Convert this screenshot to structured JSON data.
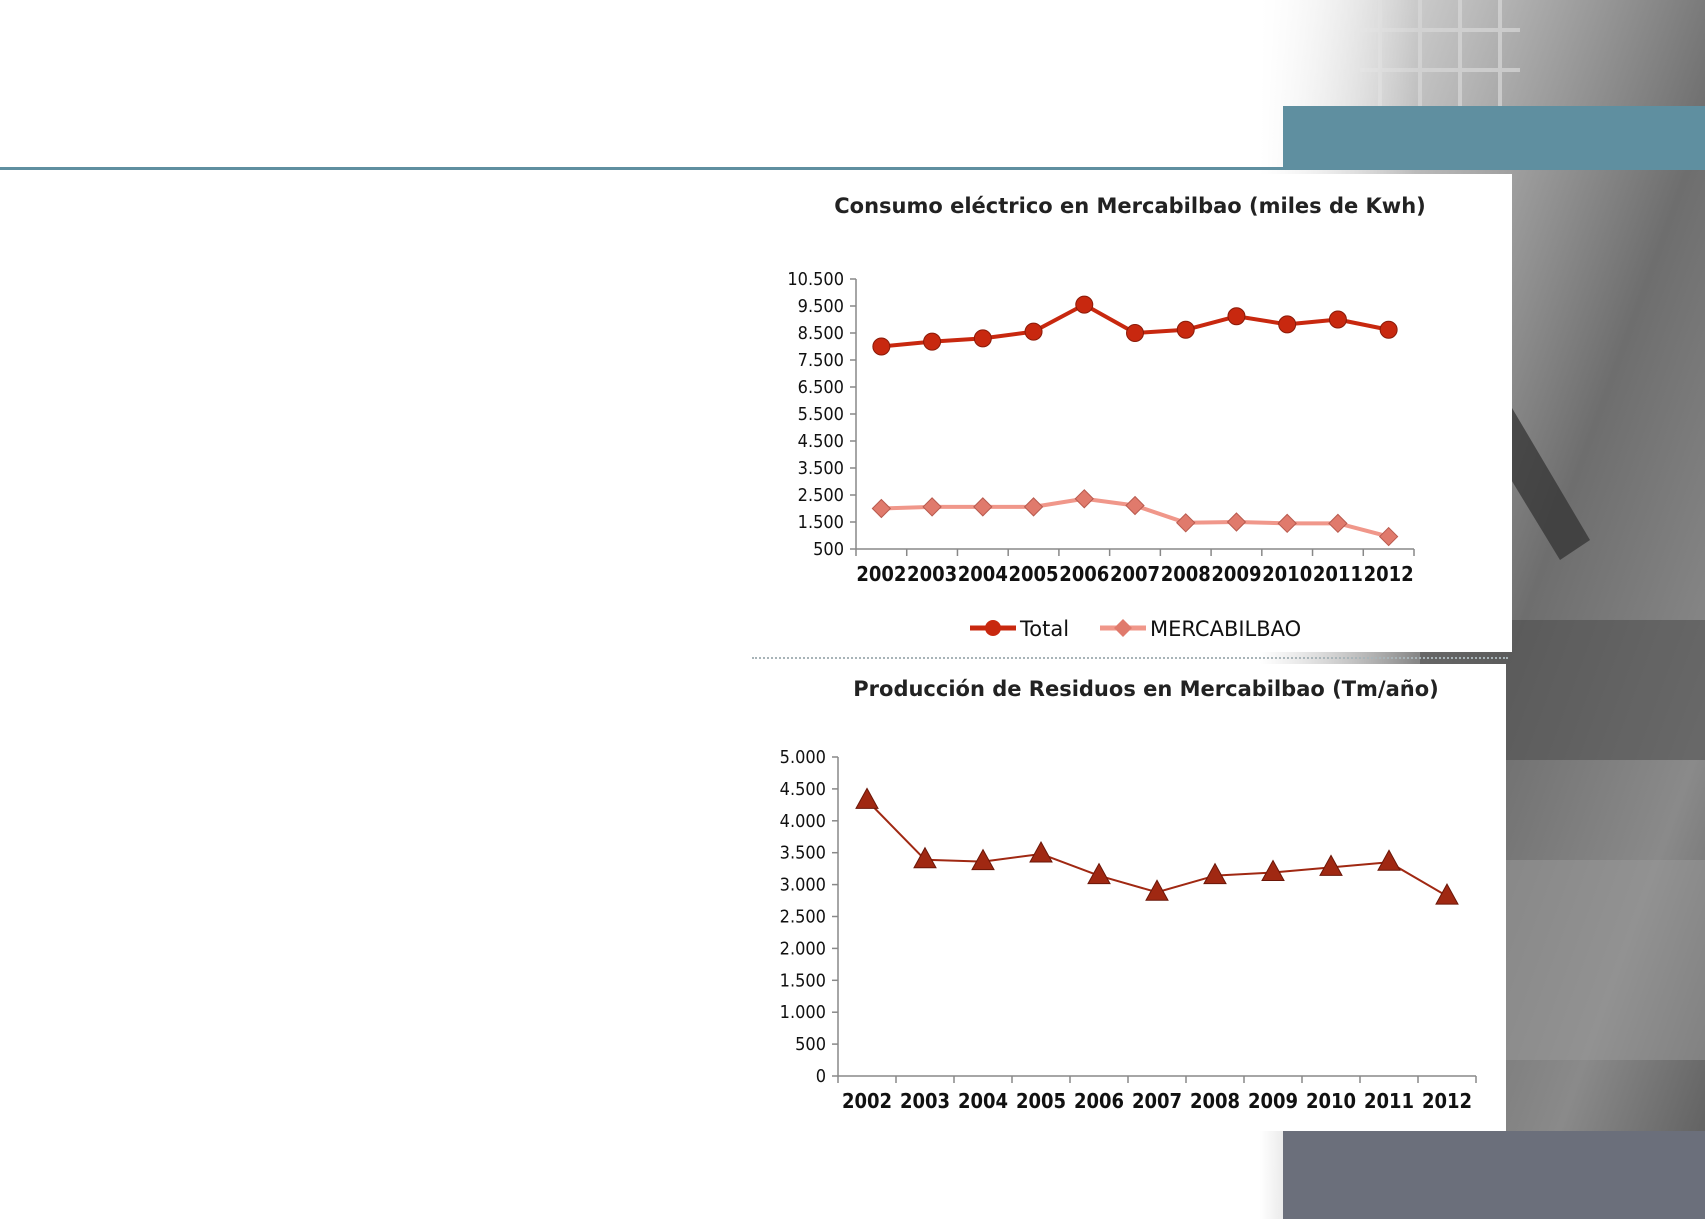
{
  "colors": {
    "teal": "#5f8fa0",
    "slate": "#6b6f7b",
    "total_series": "#c8280f",
    "mercabilbao_series": "#f0978a",
    "residuos_series": "#a02812"
  },
  "chart_data": [
    {
      "type": "line",
      "title": "Consumo eléctrico en Mercabilbao (miles de Kwh)",
      "xlabel": "",
      "ylabel": "",
      "categories": [
        "2002",
        "2003",
        "2004",
        "2005",
        "2006",
        "2007",
        "2008",
        "2009",
        "2010",
        "2011",
        "2012"
      ],
      "ylim": [
        500,
        10500
      ],
      "yticks": [
        500,
        1500,
        2500,
        3500,
        4500,
        5500,
        6500,
        7500,
        8500,
        9500,
        10500
      ],
      "ytick_labels": [
        "500",
        "1.500",
        "2.500",
        "3.500",
        "4.500",
        "5.500",
        "6.500",
        "7.500",
        "8.500",
        "9.500",
        "10.500"
      ],
      "grid": false,
      "legend": "bottom",
      "series": [
        {
          "name": "Total",
          "marker": "circle",
          "color": "#c8280f",
          "values": [
            8000,
            8180,
            8300,
            8550,
            9550,
            8500,
            8620,
            9120,
            8820,
            9000,
            8620
          ]
        },
        {
          "name": "MERCABILBAO",
          "marker": "diamond",
          "color": "#f0978a",
          "values": [
            2000,
            2060,
            2060,
            2060,
            2360,
            2110,
            1470,
            1500,
            1450,
            1450,
            960
          ]
        }
      ]
    },
    {
      "type": "line",
      "title": "Producción de Residuos en Mercabilbao (Tm/año)",
      "xlabel": "",
      "ylabel": "",
      "categories": [
        "2002",
        "2003",
        "2004",
        "2005",
        "2006",
        "2007",
        "2008",
        "2009",
        "2010",
        "2011",
        "2012"
      ],
      "ylim": [
        0,
        5000
      ],
      "yticks": [
        0,
        500,
        1000,
        1500,
        2000,
        2500,
        3000,
        3500,
        4000,
        4500,
        5000
      ],
      "ytick_labels": [
        "0",
        "500",
        "1.000",
        "1.500",
        "2.000",
        "2.500",
        "3.000",
        "3.500",
        "4.000",
        "4.500",
        "5.000"
      ],
      "grid": false,
      "legend": "none",
      "series": [
        {
          "marker": "triangle",
          "color": "#a02812",
          "values": [
            4320,
            3390,
            3360,
            3480,
            3140,
            2880,
            3140,
            3190,
            3270,
            3350,
            2820
          ]
        }
      ]
    }
  ]
}
